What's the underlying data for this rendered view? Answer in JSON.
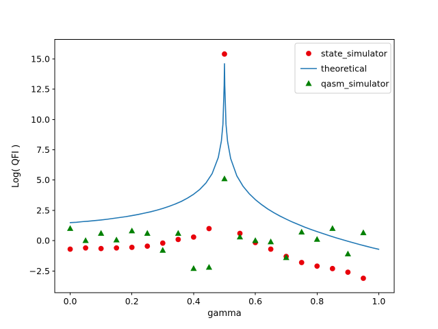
{
  "figure": {
    "background": "#ffffff"
  },
  "chart_data": {
    "type": "line+scatter",
    "title": "",
    "xlabel": "gamma",
    "ylabel": "Log( QFI )",
    "xlim": [
      -0.05,
      1.05
    ],
    "ylim": [
      -4.3,
      16.6
    ],
    "xticks": [
      0.0,
      0.2,
      0.4,
      0.6,
      0.8,
      1.0
    ],
    "xtick_labels": [
      "0.0",
      "0.2",
      "0.4",
      "0.6",
      "0.8",
      "1.0"
    ],
    "yticks": [
      -2.5,
      0.0,
      2.5,
      5.0,
      7.5,
      10.0,
      12.5,
      15.0
    ],
    "ytick_labels": [
      "−2.5",
      "0.0",
      "2.5",
      "5.0",
      "7.5",
      "10.0",
      "12.5",
      "15.0"
    ],
    "grid": false,
    "legend_position": "upper right",
    "axes_color": "#000000",
    "series": [
      {
        "name": "state_simulator",
        "type": "scatter",
        "marker": "circle",
        "color": "#e8000b",
        "x": [
          0.0,
          0.05,
          0.1,
          0.15,
          0.2,
          0.25,
          0.3,
          0.35,
          0.4,
          0.45,
          0.5,
          0.55,
          0.6,
          0.65,
          0.7,
          0.75,
          0.8,
          0.85,
          0.9,
          0.95
        ],
        "y": [
          -0.7,
          -0.6,
          -0.65,
          -0.6,
          -0.55,
          -0.45,
          -0.2,
          0.1,
          0.3,
          1.0,
          15.4,
          0.6,
          -0.15,
          -0.7,
          -1.3,
          -1.8,
          -2.1,
          -2.3,
          -2.6,
          -3.1
        ]
      },
      {
        "name": "theoretical",
        "type": "line",
        "marker": "none",
        "color": "#1f77b4",
        "x": [
          0.0,
          0.02,
          0.04,
          0.06,
          0.08,
          0.1,
          0.12,
          0.14,
          0.16,
          0.18,
          0.2,
          0.22,
          0.24,
          0.26,
          0.28,
          0.3,
          0.32,
          0.34,
          0.36,
          0.38,
          0.4,
          0.42,
          0.44,
          0.46,
          0.48,
          0.49,
          0.495,
          0.499,
          0.5,
          0.501,
          0.505,
          0.51,
          0.52,
          0.54,
          0.56,
          0.58,
          0.6,
          0.62,
          0.64,
          0.66,
          0.68,
          0.7,
          0.72,
          0.74,
          0.76,
          0.78,
          0.8,
          0.82,
          0.84,
          0.86,
          0.88,
          0.9,
          0.92,
          0.94,
          0.96,
          0.98,
          1.0
        ],
        "y": [
          1.49,
          1.52,
          1.57,
          1.61,
          1.66,
          1.71,
          1.77,
          1.84,
          1.91,
          1.98,
          2.07,
          2.16,
          2.27,
          2.38,
          2.51,
          2.66,
          2.83,
          3.02,
          3.24,
          3.51,
          3.83,
          4.23,
          4.76,
          5.53,
          6.87,
          8.23,
          9.61,
          12.82,
          14.6,
          12.81,
          9.59,
          8.19,
          6.78,
          5.35,
          4.5,
          3.88,
          3.39,
          2.98,
          2.62,
          2.31,
          2.03,
          1.78,
          1.54,
          1.33,
          1.12,
          0.93,
          0.75,
          0.58,
          0.41,
          0.25,
          0.1,
          -0.05,
          -0.19,
          -0.33,
          -0.46,
          -0.59,
          -0.71
        ]
      },
      {
        "name": "qasm_simulator",
        "type": "scatter",
        "marker": "triangle",
        "color": "#008000",
        "x": [
          0.0,
          0.05,
          0.1,
          0.15,
          0.2,
          0.25,
          0.3,
          0.35,
          0.4,
          0.45,
          0.5,
          0.55,
          0.6,
          0.65,
          0.7,
          0.75,
          0.8,
          0.85,
          0.9,
          0.95
        ],
        "y": [
          1.0,
          0.0,
          0.6,
          0.05,
          0.8,
          0.6,
          -0.8,
          0.6,
          -2.3,
          -2.2,
          5.1,
          0.3,
          0.0,
          -0.1,
          -1.4,
          0.7,
          0.1,
          1.0,
          -1.1,
          0.65
        ]
      }
    ],
    "legend": {
      "entries": [
        "state_simulator",
        "theoretical",
        "qasm_simulator"
      ]
    }
  }
}
